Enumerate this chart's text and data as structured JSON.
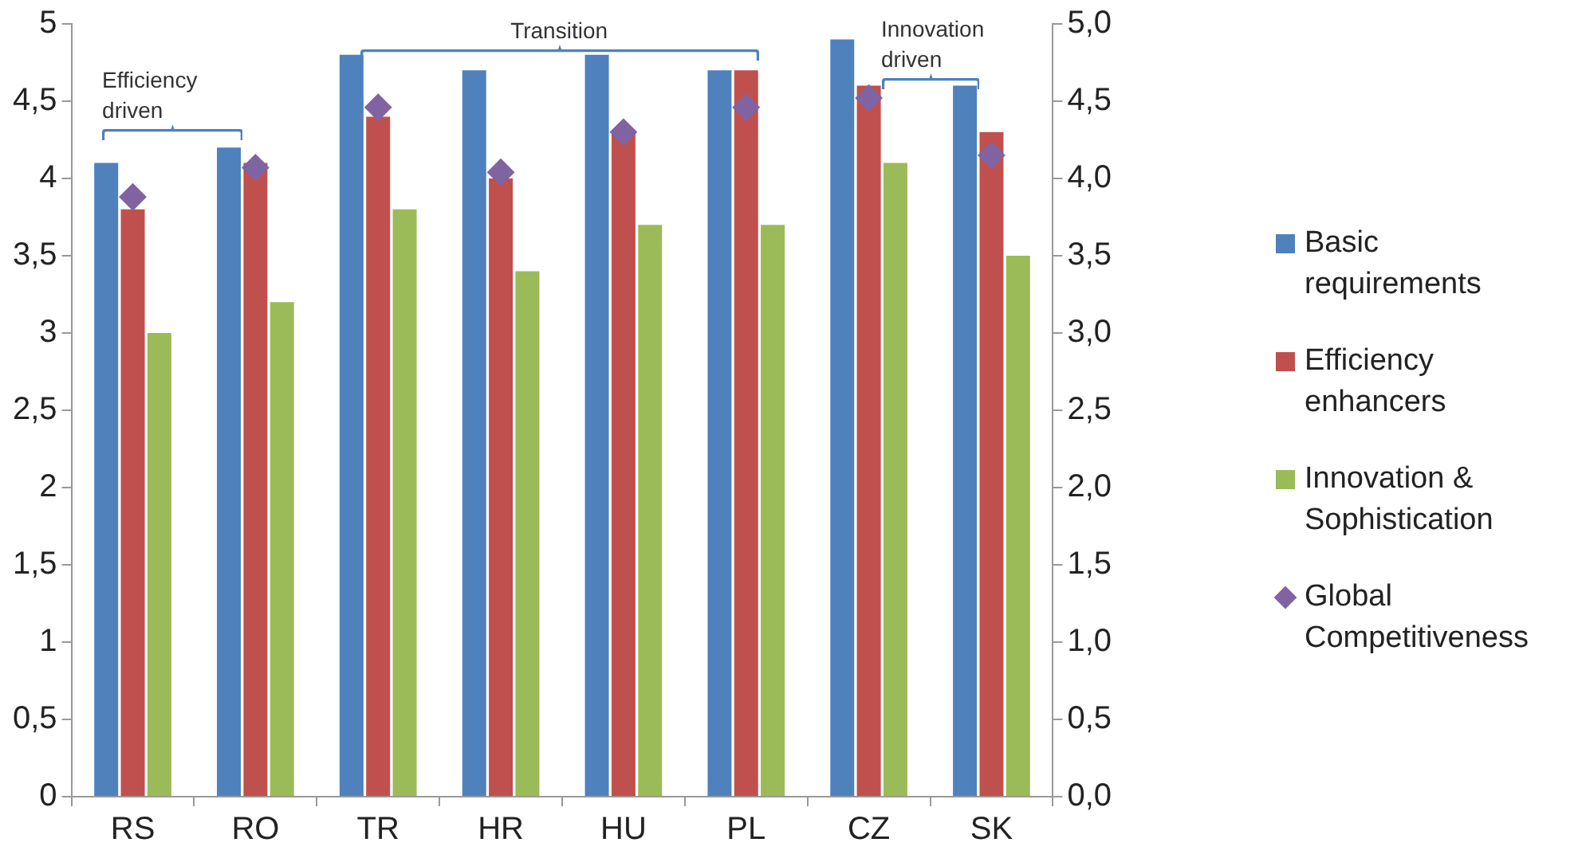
{
  "chart_data": {
    "type": "bar",
    "categories": [
      "RS",
      "RO",
      "TR",
      "HR",
      "HU",
      "PL",
      "CZ",
      "SK"
    ],
    "series": [
      {
        "name": "Basic requirements",
        "color": "#4f81bd",
        "values": [
          4.1,
          4.2,
          4.8,
          4.7,
          4.8,
          4.7,
          4.9,
          4.6
        ]
      },
      {
        "name": "Efficiency enhancers",
        "color": "#c0504d",
        "values": [
          3.8,
          4.1,
          4.4,
          4.0,
          4.3,
          4.7,
          4.6,
          4.3
        ]
      },
      {
        "name": "Innovation & Sophistication",
        "color": "#9bbb59",
        "values": [
          3.0,
          3.2,
          3.8,
          3.4,
          3.7,
          3.7,
          4.1,
          3.5
        ]
      },
      {
        "name": "Global Competitiveness",
        "color": "#8064a2",
        "type": "scatter",
        "marker": "diamond",
        "values": [
          3.88,
          4.07,
          4.46,
          4.04,
          4.3,
          4.46,
          4.52,
          4.15
        ]
      }
    ],
    "ylim": [
      0,
      5
    ],
    "yticks": [
      0,
      {
        "value": 0.5,
        "label": "0,5"
      },
      1,
      {
        "value": 1.5,
        "label": "1,5"
      },
      2,
      {
        "value": 2.5,
        "label": "2,5"
      },
      3,
      {
        "value": 3.5,
        "label": "3,5"
      },
      4,
      {
        "value": 4.5,
        "label": "4,5"
      },
      5
    ],
    "y2lim": [
      0,
      5
    ],
    "y2ticks": [
      {
        "value": 0,
        "label": "0,0"
      },
      {
        "value": 0.5,
        "label": "0,5"
      },
      {
        "value": 1,
        "label": "1,0"
      },
      {
        "value": 1.5,
        "label": "1,5"
      },
      {
        "value": 2,
        "label": "2,0"
      },
      {
        "value": 2.5,
        "label": "2,5"
      },
      {
        "value": 3,
        "label": "3,0"
      },
      {
        "value": 3.5,
        "label": "3,5"
      },
      {
        "value": 4,
        "label": "4,0"
      },
      {
        "value": 4.5,
        "label": "4,5"
      },
      {
        "value": 5,
        "label": "5,0"
      }
    ],
    "legend": "right",
    "annotations": [
      "Efficiency driven",
      "Transition",
      "Innovation driven"
    ]
  }
}
